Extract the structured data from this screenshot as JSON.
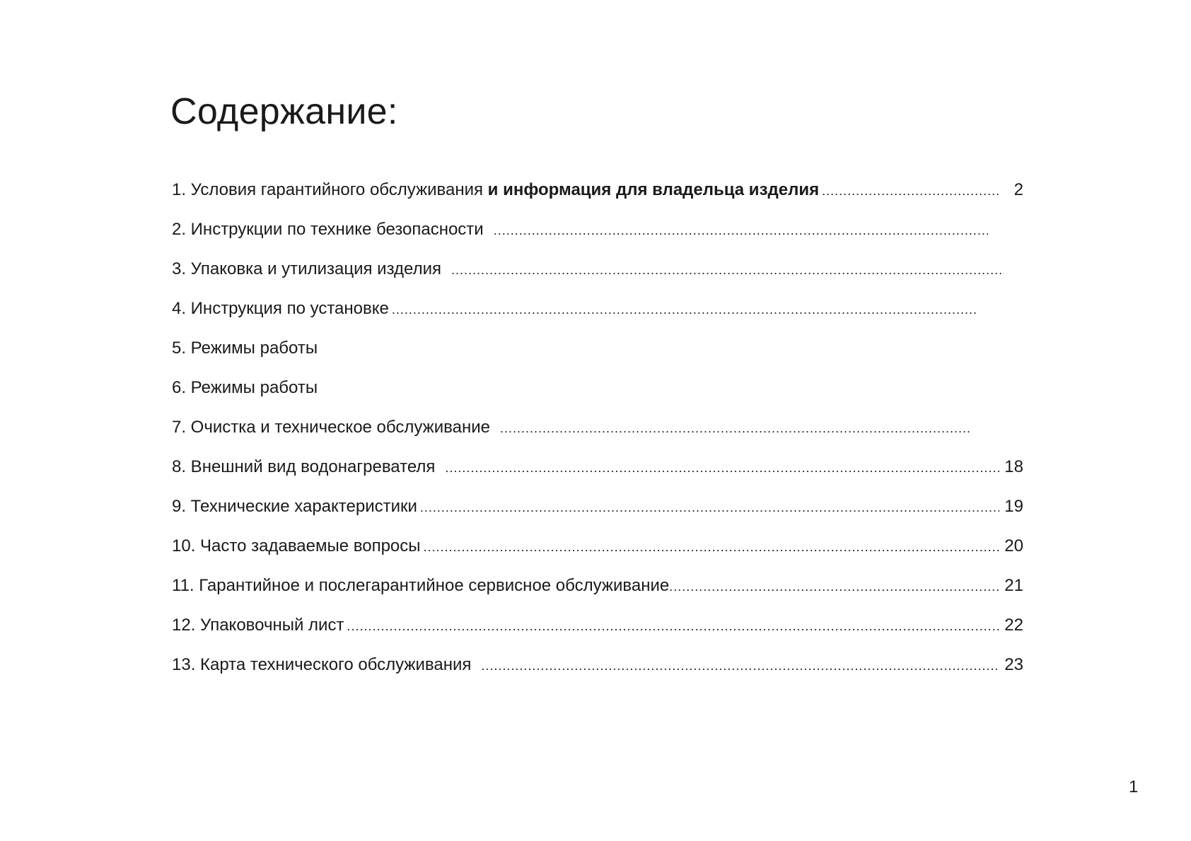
{
  "title": "Содержание:",
  "items": [
    {
      "label": "1. Условия гарантийного обслуживания",
      "label_bold": "и информация для владельца изделия",
      "page": "2"
    },
    {
      "label": "2. Инструкции по технике безопасности",
      "page": ""
    },
    {
      "label": "3. Упаковка и утилизация изделия",
      "page": ""
    },
    {
      "label": "4. Инструкция по установке",
      "page": ""
    },
    {
      "label": "5. Режимы работы"
    },
    {
      "label": "6. Режимы работы"
    },
    {
      "label": "7. Очистка и техническое обслуживание",
      "page": ""
    },
    {
      "label": "8. Внешний вид водонагревателя",
      "page": "18"
    },
    {
      "label": "9. Технические характеристики",
      "page": "19"
    },
    {
      "label": "10. Часто задаваемые вопросы",
      "page": "20"
    },
    {
      "label": "11. Гарантийное и послегарантийное сервисное обслуживание",
      "page": "21"
    },
    {
      "label": "12. Упаковочный лист",
      "page": "22"
    },
    {
      "label": "13. Карта технического обслуживания",
      "page": "23"
    }
  ],
  "page_number": "1"
}
